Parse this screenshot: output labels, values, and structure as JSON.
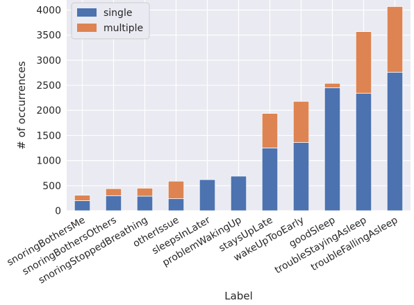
{
  "chart_data": {
    "type": "bar",
    "stacked": true,
    "title": "",
    "xlabel": "Label",
    "ylabel": "# of occurrences",
    "ylim": [
      0,
      4200
    ],
    "yticks": [
      0,
      500,
      1000,
      1500,
      2000,
      2500,
      3000,
      3500,
      4000
    ],
    "grid": true,
    "legend_position": "top-left",
    "categories": [
      "snoringBothersMe",
      "snoringBothersOthers",
      "snoringStoppedBreathing",
      "otherIssue",
      "sleepsInLater",
      "problemWakingUp",
      "staysUpLate",
      "wakeUpTooEarly",
      "goodSleep",
      "troubleStayingAsleep",
      "troubleFallingAsleep"
    ],
    "series": [
      {
        "name": "single",
        "color": "#4c72b0",
        "values": [
          200,
          300,
          290,
          240,
          620,
          690,
          1250,
          1360,
          2450,
          2340,
          2760
        ]
      },
      {
        "name": "multiple",
        "color": "#dd8452",
        "values": [
          110,
          140,
          160,
          350,
          0,
          0,
          690,
          820,
          90,
          1230,
          1310
        ]
      }
    ]
  }
}
